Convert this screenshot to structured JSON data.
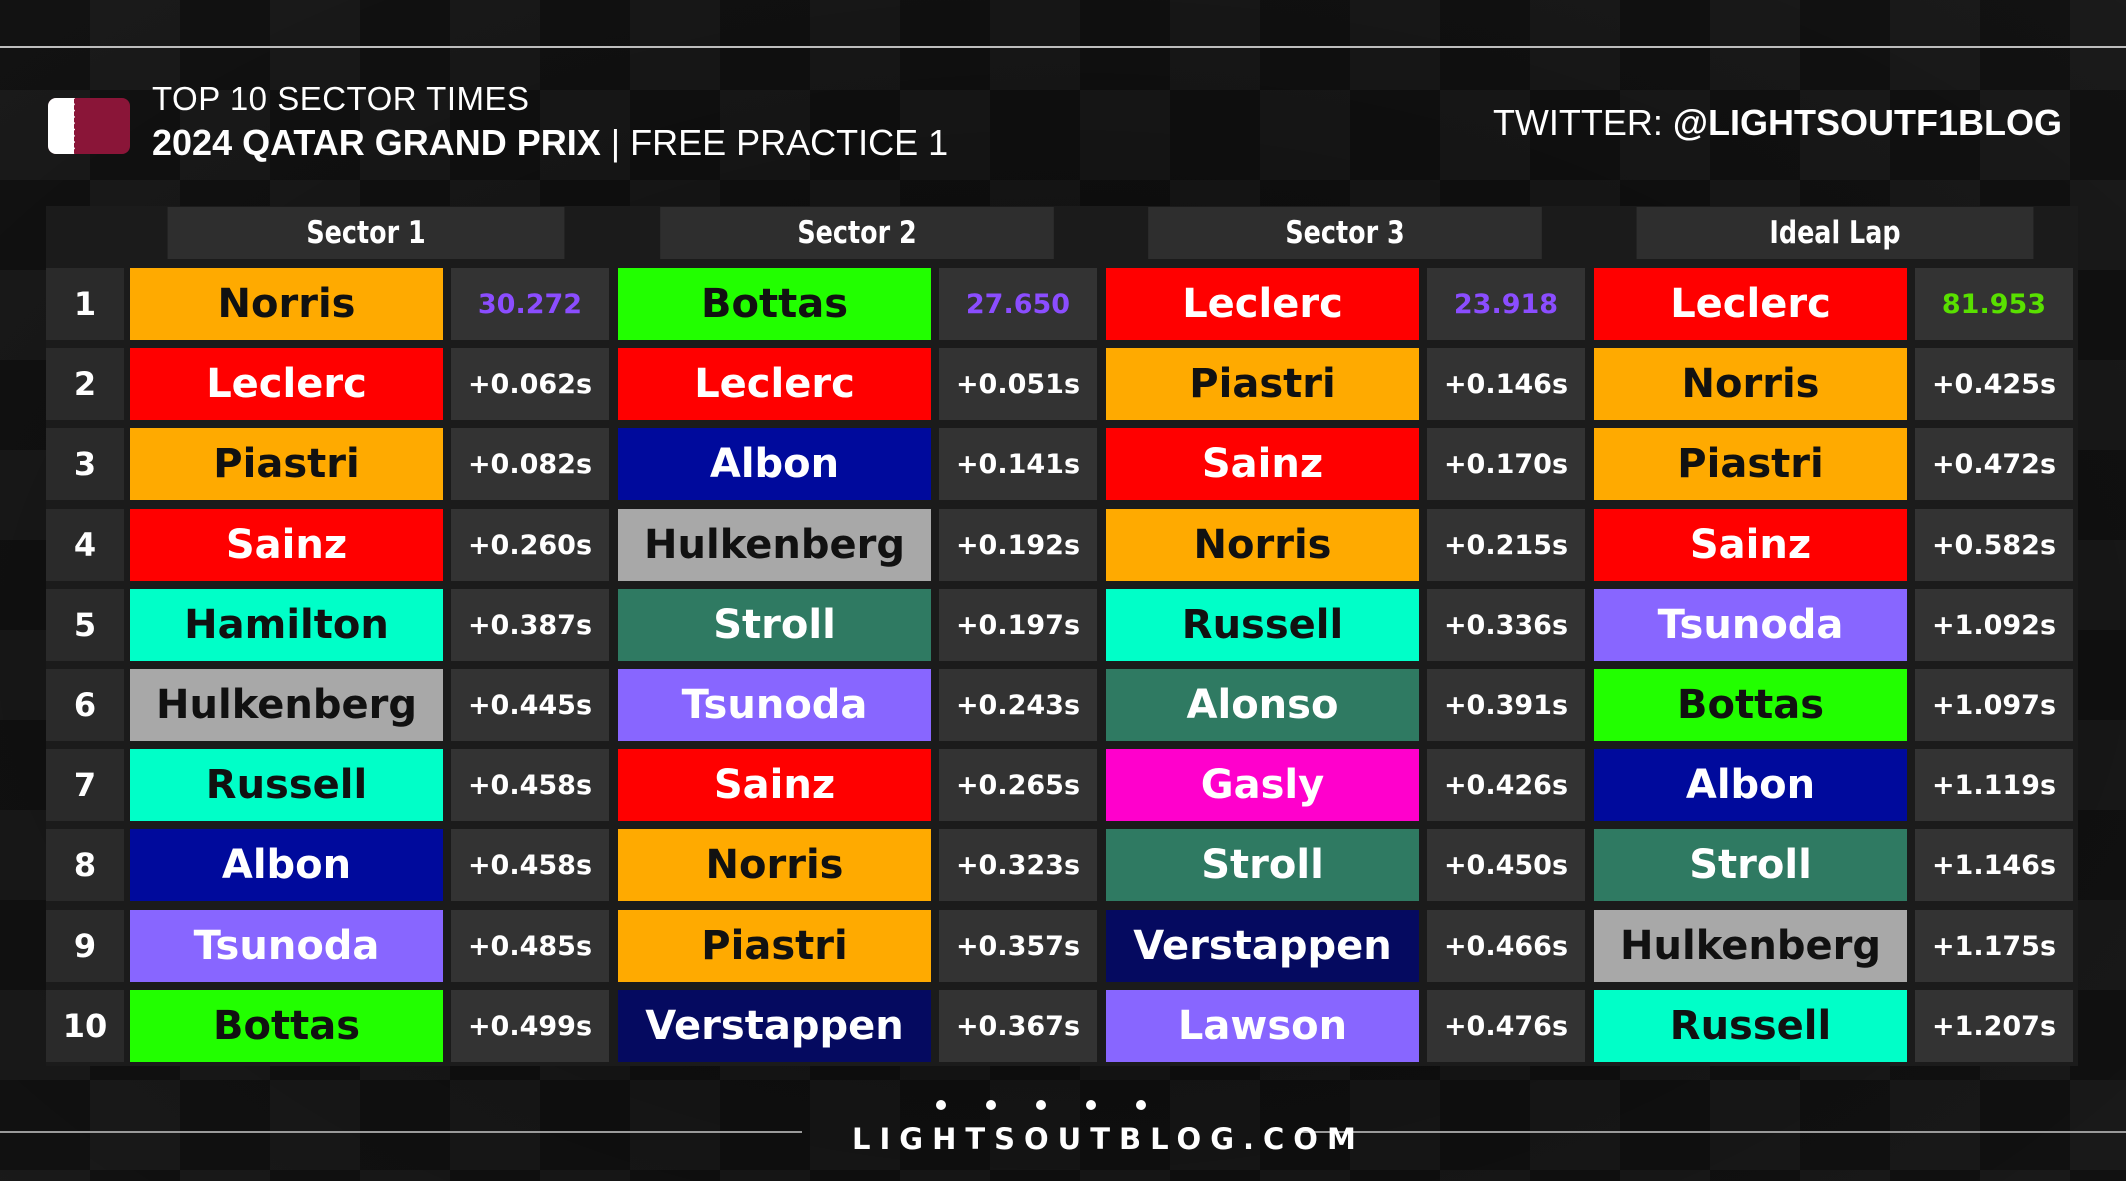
{
  "header": {
    "line1": "TOP 10 SECTOR TIMES",
    "event": "2024 QATAR GRAND PRIX",
    "separator": " | ",
    "session": "FREE PRACTICE 1",
    "twitter_label": "TWITTER: ",
    "twitter_handle": "@LIGHTSOUTF1BLOG"
  },
  "flag_icon": "qatar-flag-icon",
  "columns": [
    "Sector 1",
    "Sector 2",
    "Sector 3",
    "Ideal Lap"
  ],
  "positions": [
    "1",
    "2",
    "3",
    "4",
    "5",
    "6",
    "7",
    "8",
    "9",
    "10"
  ],
  "team_colors": {
    "mclaren": "#ffaa00",
    "ferrari": "#ff0000",
    "mercedes": "#00ffc8",
    "sauber": "#22ff00",
    "williams": "#000a9c",
    "haas": "#a8a8a8",
    "aston": "#2f7a62",
    "rb": "#8866ff",
    "alpine": "#ff00cc",
    "redbull": "#050a60"
  },
  "highlight_colors": {
    "sector_best": "#8b4dff",
    "ideal_best": "#59e000"
  },
  "sectors": [
    {
      "rows": [
        {
          "driver": "Norris",
          "team": "mclaren",
          "time": "30.272"
        },
        {
          "driver": "Leclerc",
          "team": "ferrari",
          "time": "+0.062s"
        },
        {
          "driver": "Piastri",
          "team": "mclaren",
          "time": "+0.082s"
        },
        {
          "driver": "Sainz",
          "team": "ferrari",
          "time": "+0.260s"
        },
        {
          "driver": "Hamilton",
          "team": "mercedes",
          "time": "+0.387s"
        },
        {
          "driver": "Hulkenberg",
          "team": "haas",
          "time": "+0.445s"
        },
        {
          "driver": "Russell",
          "team": "mercedes",
          "time": "+0.458s"
        },
        {
          "driver": "Albon",
          "team": "williams",
          "time": "+0.458s"
        },
        {
          "driver": "Tsunoda",
          "team": "rb",
          "time": "+0.485s"
        },
        {
          "driver": "Bottas",
          "team": "sauber",
          "time": "+0.499s"
        }
      ]
    },
    {
      "rows": [
        {
          "driver": "Bottas",
          "team": "sauber",
          "time": "27.650"
        },
        {
          "driver": "Leclerc",
          "team": "ferrari",
          "time": "+0.051s"
        },
        {
          "driver": "Albon",
          "team": "williams",
          "time": "+0.141s"
        },
        {
          "driver": "Hulkenberg",
          "team": "haas",
          "time": "+0.192s"
        },
        {
          "driver": "Stroll",
          "team": "aston",
          "time": "+0.197s"
        },
        {
          "driver": "Tsunoda",
          "team": "rb",
          "time": "+0.243s"
        },
        {
          "driver": "Sainz",
          "team": "ferrari",
          "time": "+0.265s"
        },
        {
          "driver": "Norris",
          "team": "mclaren",
          "time": "+0.323s"
        },
        {
          "driver": "Piastri",
          "team": "mclaren",
          "time": "+0.357s"
        },
        {
          "driver": "Verstappen",
          "team": "redbull",
          "time": "+0.367s"
        }
      ]
    },
    {
      "rows": [
        {
          "driver": "Leclerc",
          "team": "ferrari",
          "time": "23.918"
        },
        {
          "driver": "Piastri",
          "team": "mclaren",
          "time": "+0.146s"
        },
        {
          "driver": "Sainz",
          "team": "ferrari",
          "time": "+0.170s"
        },
        {
          "driver": "Norris",
          "team": "mclaren",
          "time": "+0.215s"
        },
        {
          "driver": "Russell",
          "team": "mercedes",
          "time": "+0.336s"
        },
        {
          "driver": "Alonso",
          "team": "aston",
          "time": "+0.391s"
        },
        {
          "driver": "Gasly",
          "team": "alpine",
          "time": "+0.426s"
        },
        {
          "driver": "Stroll",
          "team": "aston",
          "time": "+0.450s"
        },
        {
          "driver": "Verstappen",
          "team": "redbull",
          "time": "+0.466s"
        },
        {
          "driver": "Lawson",
          "team": "rb",
          "time": "+0.476s"
        }
      ]
    },
    {
      "rows": [
        {
          "driver": "Leclerc",
          "team": "ferrari",
          "time": "81.953"
        },
        {
          "driver": "Norris",
          "team": "mclaren",
          "time": "+0.425s"
        },
        {
          "driver": "Piastri",
          "team": "mclaren",
          "time": "+0.472s"
        },
        {
          "driver": "Sainz",
          "team": "ferrari",
          "time": "+0.582s"
        },
        {
          "driver": "Tsunoda",
          "team": "rb",
          "time": "+1.092s"
        },
        {
          "driver": "Bottas",
          "team": "sauber",
          "time": "+1.097s"
        },
        {
          "driver": "Albon",
          "team": "williams",
          "time": "+1.119s"
        },
        {
          "driver": "Stroll",
          "team": "aston",
          "time": "+1.146s"
        },
        {
          "driver": "Hulkenberg",
          "team": "haas",
          "time": "+1.175s"
        },
        {
          "driver": "Russell",
          "team": "mercedes",
          "time": "+1.207s"
        }
      ]
    }
  ],
  "footer": {
    "site": "LIGHTSOUTBLOG.COM"
  }
}
